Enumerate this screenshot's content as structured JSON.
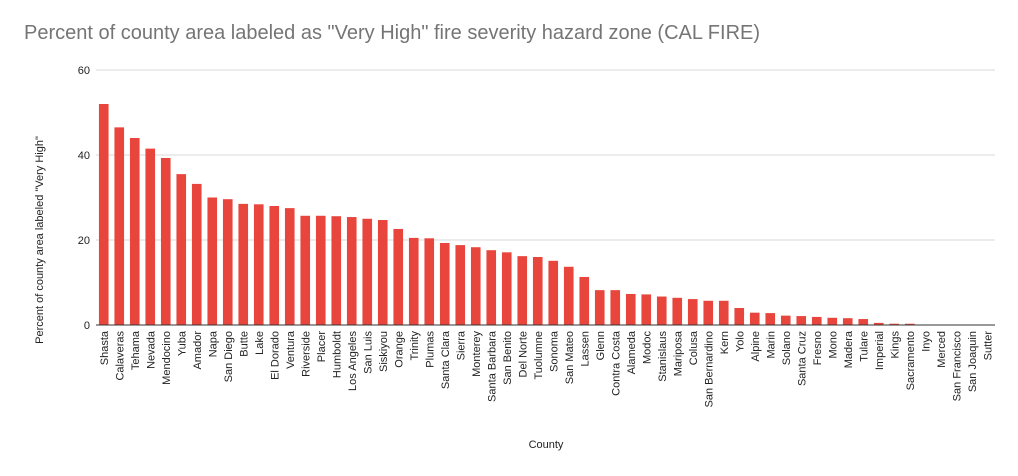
{
  "chart_data": {
    "type": "bar",
    "title": "Percent of county area labeled as \"Very High\" fire severity hazard zone (CAL FIRE)",
    "xlabel": "County",
    "ylabel": "Percent of county area labeled \"Very High\"",
    "ylim": [
      0,
      60
    ],
    "yticks": [
      "0",
      "20",
      "40",
      "60"
    ],
    "grid": true,
    "legend": "none",
    "bar_color": "#e8453c",
    "categories": [
      "Shasta",
      "Calaveras",
      "Tehama",
      "Nevada",
      "Mendocino",
      "Yuba",
      "Amador",
      "Napa",
      "San Diego",
      "Butte",
      "Lake",
      "El Dorado",
      "Ventura",
      "Riverside",
      "Placer",
      "Humboldt",
      "Los Angeles",
      "San Luis",
      "Siskiyou",
      "Orange",
      "Trinity",
      "Plumas",
      "Santa Clara",
      "Sierra",
      "Monterey",
      "Santa Barbara",
      "San Benito",
      "Del Norte",
      "Tuolumne",
      "Sonoma",
      "San Mateo",
      "Lassen",
      "Glenn",
      "Contra Costa",
      "Alameda",
      "Modoc",
      "Stanislaus",
      "Mariposa",
      "Colusa",
      "San Bernardino",
      "Kern",
      "Yolo",
      "Alpine",
      "Marin",
      "Solano",
      "Santa Cruz",
      "Fresno",
      "Mono",
      "Madera",
      "Tulare",
      "Imperial",
      "Kings",
      "Sacramento",
      "Inyo",
      "Merced",
      "San Francisco",
      "San Joaquin",
      "Sutter"
    ],
    "values": [
      52.0,
      46.5,
      44.0,
      41.5,
      39.3,
      35.5,
      33.2,
      30.0,
      29.6,
      28.5,
      28.4,
      28.0,
      27.5,
      25.7,
      25.7,
      25.6,
      25.4,
      25.0,
      24.7,
      22.6,
      20.5,
      20.4,
      19.3,
      18.8,
      18.3,
      17.6,
      17.1,
      16.2,
      16.0,
      15.1,
      13.7,
      11.3,
      8.2,
      8.2,
      7.3,
      7.2,
      6.7,
      6.4,
      6.1,
      5.7,
      5.7,
      4.0,
      2.9,
      2.8,
      2.2,
      2.1,
      1.9,
      1.7,
      1.6,
      1.4,
      0.5,
      0.3,
      0.3,
      0.1,
      0.05,
      0.05,
      0.05,
      0.05
    ]
  }
}
